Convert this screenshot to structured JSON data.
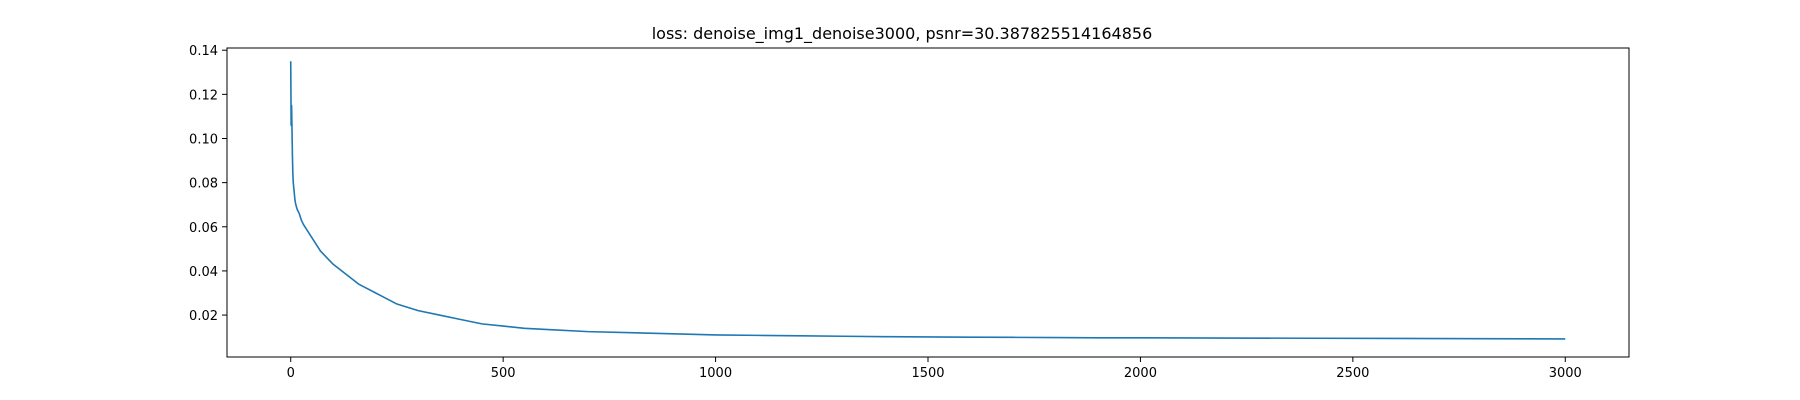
{
  "chart_data": {
    "type": "line",
    "title": "loss: denoise_img1_denoise3000, psnr=30.387825514164856",
    "xlabel": "",
    "ylabel": "",
    "xlim": [
      -150,
      3150
    ],
    "ylim": [
      0.001,
      0.141
    ],
    "x_ticks": [
      0,
      500,
      1000,
      1500,
      2000,
      2500,
      3000
    ],
    "x_tick_labels": [
      "0",
      "500",
      "1000",
      "1500",
      "2000",
      "2500",
      "3000"
    ],
    "y_ticks": [
      0.02,
      0.04,
      0.06,
      0.08,
      0.1,
      0.12,
      0.14
    ],
    "y_tick_labels": [
      "0.02",
      "0.04",
      "0.06",
      "0.08",
      "0.10",
      "0.12",
      "0.14"
    ],
    "grid": false,
    "legend": "none",
    "series_color": "#1f77b4",
    "series": [
      {
        "x": [
          0,
          1,
          2,
          3,
          4,
          5,
          6,
          8,
          10,
          12,
          15,
          20,
          25,
          30,
          40,
          50,
          60,
          70,
          80,
          90,
          100,
          120,
          140,
          160,
          180,
          200,
          250,
          300,
          350,
          400,
          450,
          500,
          550,
          600,
          700,
          800,
          900,
          1000,
          1100,
          1200,
          1300,
          1400,
          1500,
          1600,
          1700,
          1800,
          1900,
          2000,
          2200,
          2400,
          2600,
          2800,
          3000
        ],
        "y": [
          0.135,
          0.106,
          0.115,
          0.104,
          0.092,
          0.084,
          0.08,
          0.076,
          0.072,
          0.07,
          0.068,
          0.066,
          0.063,
          0.061,
          0.058,
          0.055,
          0.052,
          0.049,
          0.047,
          0.045,
          0.043,
          0.04,
          0.037,
          0.034,
          0.032,
          0.03,
          0.025,
          0.022,
          0.02,
          0.018,
          0.016,
          0.015,
          0.014,
          0.0135,
          0.0125,
          0.012,
          0.0115,
          0.011,
          0.0108,
          0.0106,
          0.0104,
          0.0102,
          0.0101,
          0.01,
          0.0099,
          0.0098,
          0.0097,
          0.0097,
          0.0096,
          0.0095,
          0.0094,
          0.0093,
          0.0092
        ]
      }
    ]
  }
}
